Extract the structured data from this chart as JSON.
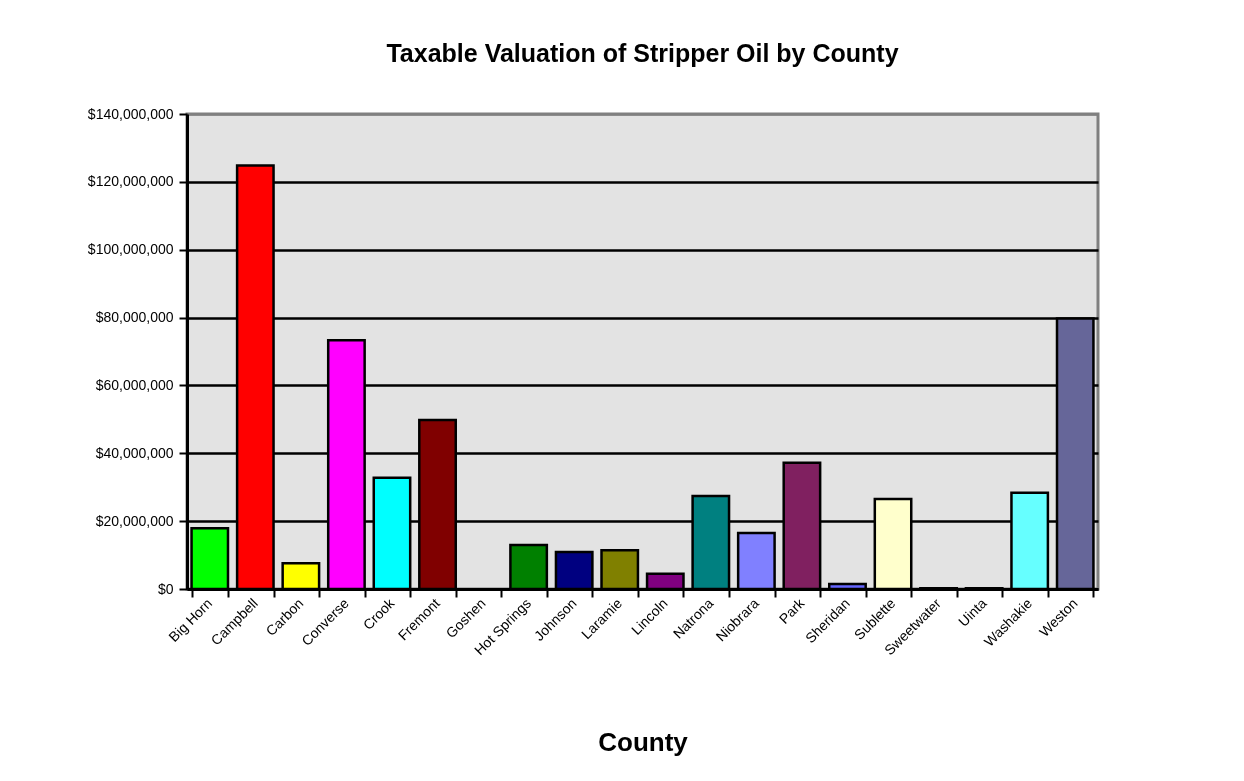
{
  "chart_data": {
    "type": "bar",
    "title": "Taxable Valuation of Stripper Oil by County",
    "xlabel": "County",
    "categories": [
      "Big Horn",
      "Campbell",
      "Carbon",
      "Converse",
      "Crook",
      "Fremont",
      "Goshen",
      "Hot Springs",
      "Johnson",
      "Laramie",
      "Lincoln",
      "Natrona",
      "Niobrara",
      "Park",
      "Sheridan",
      "Sublette",
      "Sweetwater",
      "Uinta",
      "Washakie",
      "Weston"
    ],
    "values": [
      17900000,
      124800000,
      7600000,
      73300000,
      32800000,
      49800000,
      0,
      13000000,
      10900000,
      11400000,
      4500000,
      27400000,
      16500000,
      37200000,
      1500000,
      26500000,
      200000,
      200000,
      28400000,
      79700000
    ],
    "colors": [
      "#00ff00",
      "#ff0000",
      "#ffff00",
      "#ff00ff",
      "#00ffff",
      "#800000",
      null,
      "#008000",
      "#000080",
      "#808000",
      "#800080",
      "#008080",
      "#8080ff",
      "#802060",
      "#6666ff",
      "#ffffcc",
      "#ccffff",
      "#660066",
      "#66ffff",
      "#666699"
    ],
    "ylim": [
      0,
      140000000
    ],
    "yticks": [
      {
        "value": 0,
        "label": "$0"
      },
      {
        "value": 20000000,
        "label": "$20,000,000"
      },
      {
        "value": 40000000,
        "label": "$40,000,000"
      },
      {
        "value": 60000000,
        "label": "$60,000,000"
      },
      {
        "value": 80000000,
        "label": "$80,000,000"
      },
      {
        "value": 100000000,
        "label": "$100,000,000"
      },
      {
        "value": 120000000,
        "label": "$120,000,000"
      },
      {
        "value": 140000000,
        "label": "$140,000,000"
      }
    ],
    "grid": "y"
  }
}
